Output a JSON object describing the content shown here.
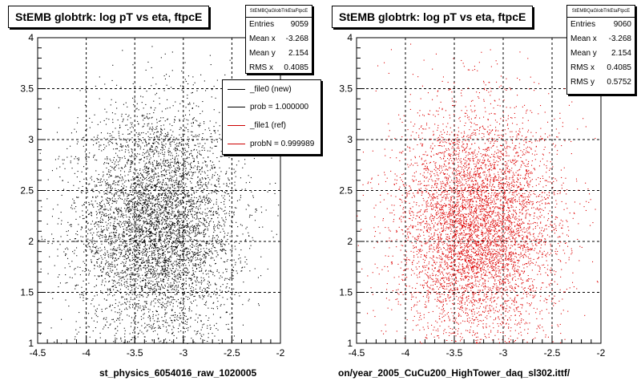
{
  "chart_data": [
    {
      "type": "scatter",
      "title": "StEMB globtrk: log pT vs eta, ftpcE",
      "xlabel": "st_physics_6054016_raw_1020005",
      "ylabel": "",
      "xlim": [
        -4.5,
        -2
      ],
      "ylim": [
        1,
        4
      ],
      "x_ticks": [
        "-4.5",
        "-4",
        "-3.5",
        "-3",
        "-2.5",
        "-2"
      ],
      "y_ticks": [
        "1",
        "1.5",
        "2",
        "2.5",
        "3",
        "3.5",
        "4"
      ],
      "grid": true,
      "marker_color": "#000000",
      "stats": {
        "header": "StEMBQaGlobTrkEtaFtpcE",
        "rows": [
          {
            "label": "Entries",
            "value": "9059"
          },
          {
            "label": "Mean x",
            "value": "-3.268"
          },
          {
            "label": "Mean y",
            "value": "2.154"
          },
          {
            "label": "RMS x",
            "value": "0.4085"
          }
        ]
      },
      "legend": {
        "placement": "top-right",
        "entries": [
          {
            "label": "_file0 (new)",
            "color": "#000000"
          },
          {
            "label": "prob = 1.000000",
            "color": "#000000"
          },
          {
            "label": "_file1 (ref)",
            "color": "#cc0000"
          },
          {
            "label": "probN = 0.999989",
            "color": "#cc0000"
          }
        ]
      },
      "distribution": {
        "entries": 9059,
        "mean_x": -3.268,
        "mean_y": 2.154,
        "rms_x": 0.4085,
        "rms_y": 0.5752
      }
    },
    {
      "type": "scatter",
      "title": "StEMB globtrk: log pT vs eta, ftpcE",
      "xlabel": "on/year_2005_CuCu200_HighTower_daq_sl302.ittf/",
      "ylabel": "",
      "xlim": [
        -4.5,
        -2
      ],
      "ylim": [
        1,
        4
      ],
      "x_ticks": [
        "-4.5",
        "-4",
        "-3.5",
        "-3",
        "-2.5",
        "-2"
      ],
      "y_ticks": [
        "1",
        "1.5",
        "2",
        "2.5",
        "3",
        "3.5",
        "4"
      ],
      "grid": true,
      "marker_color": "#dd0000",
      "stats": {
        "header": "StEMBQaGlobTrkEtaFtpcE",
        "rows": [
          {
            "label": "Entries",
            "value": "9060"
          },
          {
            "label": "Mean x",
            "value": "-3.268"
          },
          {
            "label": "Mean y",
            "value": "2.154"
          },
          {
            "label": "RMS x",
            "value": "0.4085"
          },
          {
            "label": "RMS y",
            "value": "0.5752"
          }
        ]
      },
      "distribution": {
        "entries": 9060,
        "mean_x": -3.268,
        "mean_y": 2.154,
        "rms_x": 0.4085,
        "rms_y": 0.5752
      }
    }
  ]
}
